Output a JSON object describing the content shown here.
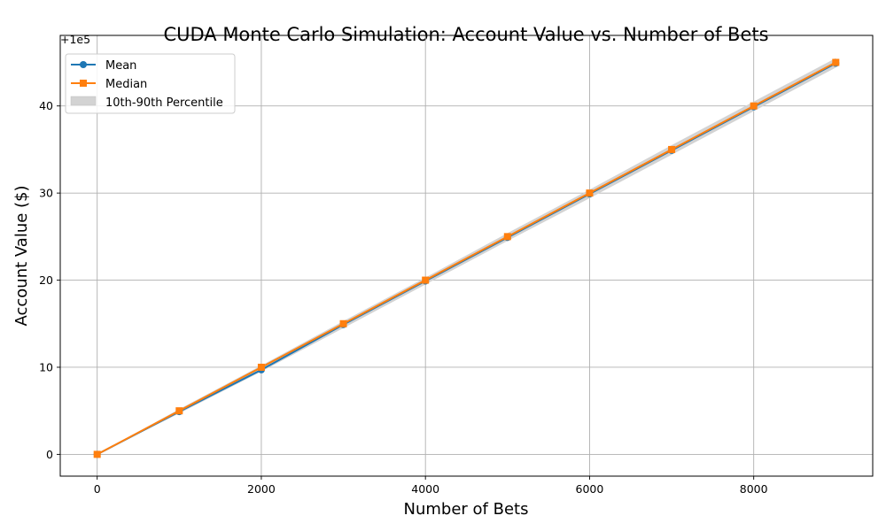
{
  "chart_data": {
    "type": "line",
    "title": "CUDA Monte Carlo Simulation: Account Value vs. Number of Bets",
    "xlabel": "Number of Bets",
    "ylabel": "Account Value ($)",
    "offset_text": "+1e5",
    "x": [
      0,
      1000,
      2000,
      3000,
      4000,
      5000,
      6000,
      7000,
      8000,
      9000
    ],
    "series": [
      {
        "name": "Mean",
        "values": [
          0,
          4.9,
          9.7,
          14.9,
          19.9,
          24.9,
          29.9,
          34.9,
          39.9,
          44.9
        ],
        "color": "#1f77b4",
        "marker": "circle"
      },
      {
        "name": "Median",
        "values": [
          0,
          5.0,
          10.0,
          15.0,
          20.0,
          25.0,
          30.0,
          35.0,
          40.0,
          45.0
        ],
        "color": "#ff7f0e",
        "marker": "square"
      }
    ],
    "band": {
      "name": "10th-90th Percentile",
      "lower": [
        0,
        4.7,
        9.5,
        14.5,
        19.5,
        24.5,
        29.4,
        34.4,
        39.4,
        44.4
      ],
      "upper": [
        0,
        5.2,
        10.2,
        15.3,
        20.3,
        25.4,
        30.4,
        35.5,
        40.5,
        45.5
      ],
      "color": "#d3d3d3"
    },
    "xticks": [
      0,
      2000,
      4000,
      6000,
      8000
    ],
    "yticks": [
      0,
      10,
      20,
      30,
      40
    ],
    "xlim": [
      -450,
      9450
    ],
    "ylim": [
      -2.5,
      48.1
    ],
    "grid": true,
    "legend": "top-left"
  }
}
